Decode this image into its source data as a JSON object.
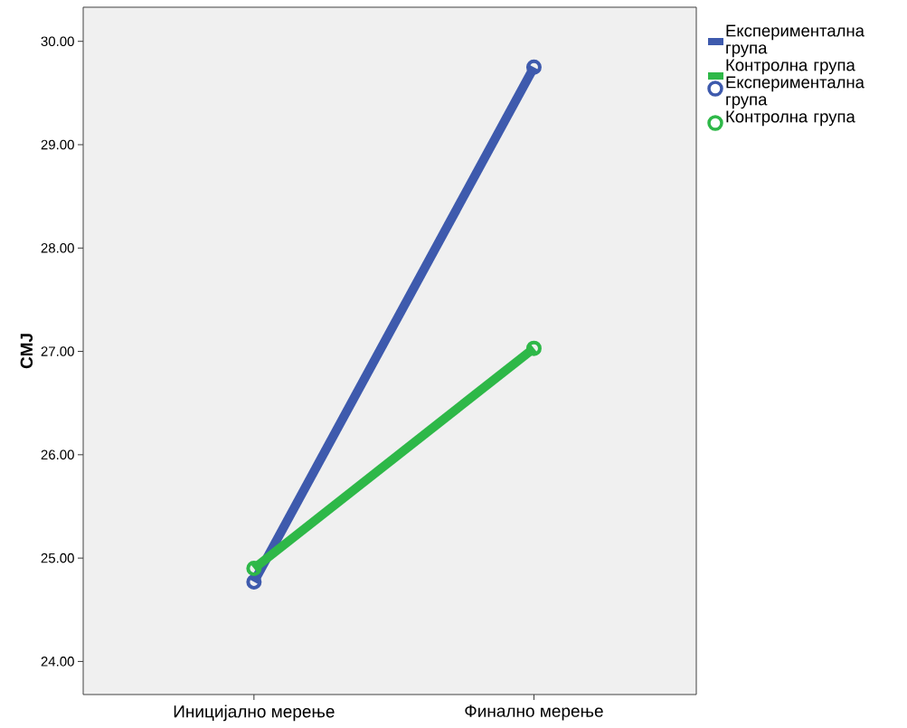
{
  "chart_data": {
    "type": "line",
    "ylabel": "CMJ",
    "categories": [
      "Иницијално мерење",
      "Финално мерење"
    ],
    "series": [
      {
        "name": "Експериментална група",
        "color": "#3e5aad",
        "values": [
          24.77,
          29.75
        ]
      },
      {
        "name": "Контролна група",
        "color": "#2eb848",
        "values": [
          24.9,
          27.03
        ]
      }
    ],
    "marker": "circle",
    "ylim": [
      23.68,
      30.33
    ],
    "yticks": [
      {
        "value": 24,
        "label": "24.00"
      },
      {
        "value": 25,
        "label": "25.00"
      },
      {
        "value": 26,
        "label": "26.00"
      },
      {
        "value": 27,
        "label": "27.00"
      },
      {
        "value": 28,
        "label": "28.00"
      },
      {
        "value": 29,
        "label": "29.00"
      },
      {
        "value": 30,
        "label": "30.00"
      }
    ],
    "grid": false,
    "legend": "top right"
  }
}
